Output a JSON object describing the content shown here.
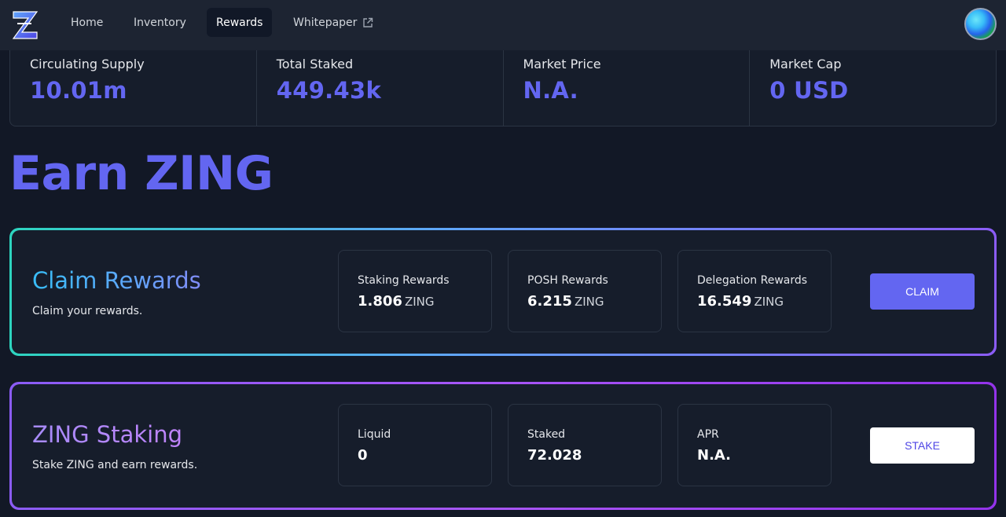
{
  "nav": {
    "links": [
      {
        "label": "Home"
      },
      {
        "label": "Inventory"
      },
      {
        "label": "Rewards",
        "active": true
      },
      {
        "label": "Whitepaper",
        "icon": "external-link-icon"
      }
    ]
  },
  "stats": [
    {
      "label": "Circulating Supply",
      "value": "10.01m"
    },
    {
      "label": "Total Staked",
      "value": "449.43k"
    },
    {
      "label": "Market Price",
      "value": "N.A."
    },
    {
      "label": "Market Cap",
      "value": "0 USD"
    }
  ],
  "page_title": "Earn ZING",
  "claim": {
    "title": "Claim Rewards",
    "subtitle": "Claim your rewards.",
    "boxes": [
      {
        "label": "Staking Rewards",
        "value": "1.806",
        "unit": "ZING"
      },
      {
        "label": "POSH Rewards",
        "value": "6.215",
        "unit": "ZING"
      },
      {
        "label": "Delegation Rewards",
        "value": "16.549",
        "unit": "ZING"
      }
    ],
    "button": "CLAIM"
  },
  "staking": {
    "title": "ZING Staking",
    "subtitle": "Stake ZING and earn rewards.",
    "boxes": [
      {
        "label": "Liquid",
        "value": "0"
      },
      {
        "label": "Staked",
        "value": "72.028"
      },
      {
        "label": "APR",
        "value": "N.A."
      }
    ],
    "button": "STAKE"
  },
  "colors": {
    "accent": "#6366f1",
    "background": "#121826",
    "panel": "#161d2b",
    "nav": "#1d2432"
  }
}
